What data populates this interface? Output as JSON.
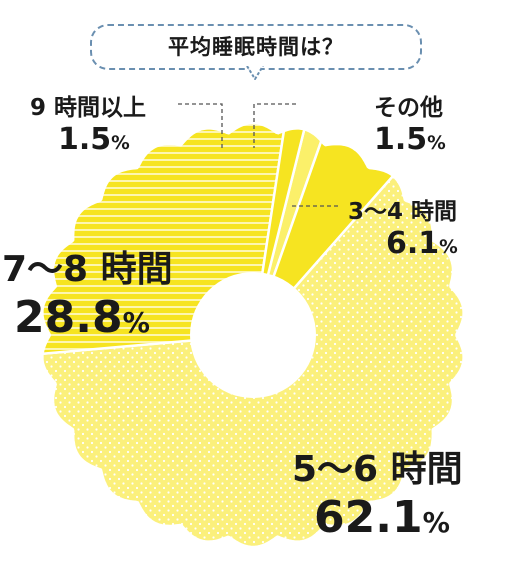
{
  "chart_data": {
    "type": "pie",
    "title": "平均睡眠時間は？",
    "slices": [
      {
        "label": "その他",
        "value": 1.5,
        "display": "1.5",
        "fill": "#fbf06a",
        "pattern": "plain"
      },
      {
        "label": "3～4 時間",
        "value": 6.1,
        "display": "6.1",
        "fill": "#f6e421",
        "pattern": "plain"
      },
      {
        "label": "5～6 時間",
        "value": 62.1,
        "display": "62.1",
        "fill": "#fbf07c",
        "pattern": "dots"
      },
      {
        "label": "7～8 時間",
        "value": 28.8,
        "display": "28.8",
        "fill": "#f6e421",
        "pattern": "stripes"
      },
      {
        "label": "9 時間以上",
        "value": 1.5,
        "display": "1.5",
        "fill": "#f6e421",
        "pattern": "plain"
      }
    ],
    "unit": "%",
    "donut": true,
    "edge": "scalloped"
  },
  "colors": {
    "bubble_border": "#6a8fb0",
    "leader": "#555555",
    "text": "#1a1a1a"
  }
}
